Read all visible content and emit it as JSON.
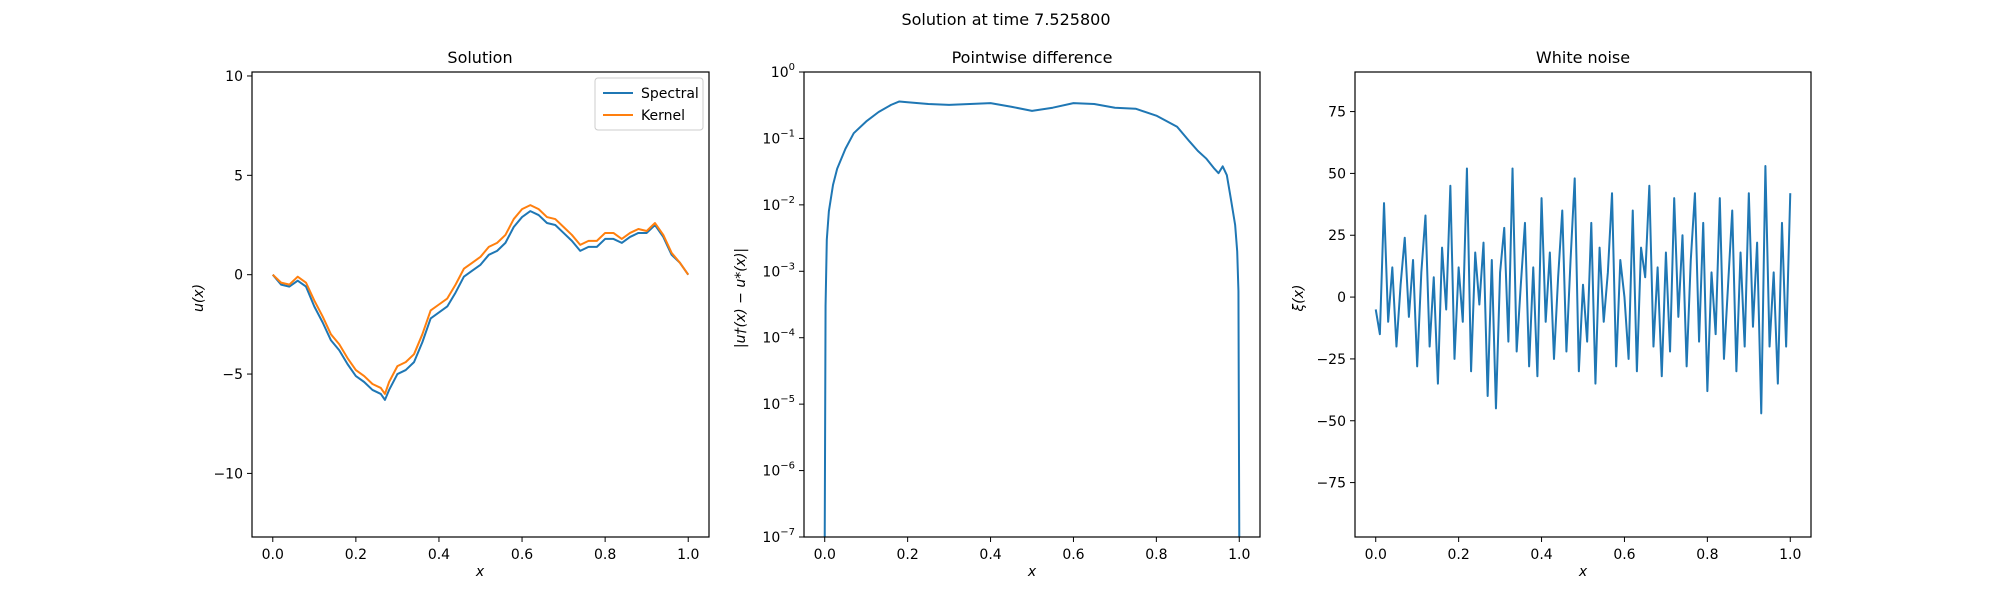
{
  "figure": {
    "suptitle": "Solution at time 7.525800"
  },
  "colors": {
    "series_blue": "#1f77b4",
    "series_orange": "#ff7f0e",
    "axes": "#000000",
    "background": "#ffffff"
  },
  "chart_data": [
    {
      "type": "line",
      "title": "Solution",
      "xlabel": "x",
      "ylabel": "u(x)",
      "xlim": [
        -0.05,
        1.05
      ],
      "ylim": [
        -13.2,
        10.2
      ],
      "xticks": [
        0.0,
        0.2,
        0.4,
        0.6,
        0.8,
        1.0
      ],
      "xtick_labels": [
        "0.0",
        "0.2",
        "0.4",
        "0.6",
        "0.8",
        "1.0"
      ],
      "yticks": [
        -10,
        -5,
        0,
        5,
        10
      ],
      "ytick_labels": [
        "−10",
        "−5",
        "0",
        "5",
        "10"
      ],
      "grid": false,
      "legend": "top-right",
      "series": [
        {
          "name": "Spectral",
          "color": "#1f77b4",
          "x": [
            0.0,
            0.02,
            0.04,
            0.06,
            0.08,
            0.1,
            0.12,
            0.14,
            0.16,
            0.18,
            0.2,
            0.22,
            0.24,
            0.26,
            0.27,
            0.28,
            0.3,
            0.32,
            0.34,
            0.36,
            0.38,
            0.4,
            0.42,
            0.44,
            0.46,
            0.48,
            0.5,
            0.52,
            0.54,
            0.56,
            0.58,
            0.6,
            0.62,
            0.64,
            0.66,
            0.68,
            0.7,
            0.72,
            0.74,
            0.76,
            0.78,
            0.8,
            0.82,
            0.84,
            0.86,
            0.88,
            0.9,
            0.92,
            0.94,
            0.96,
            0.98,
            1.0
          ],
          "y": [
            0.0,
            -0.5,
            -0.6,
            -0.3,
            -0.6,
            -1.6,
            -2.4,
            -3.3,
            -3.8,
            -4.5,
            -5.1,
            -5.4,
            -5.8,
            -6.0,
            -6.3,
            -5.8,
            -5.0,
            -4.8,
            -4.4,
            -3.4,
            -2.2,
            -1.9,
            -1.6,
            -0.9,
            -0.1,
            0.2,
            0.5,
            1.0,
            1.2,
            1.6,
            2.4,
            2.9,
            3.2,
            3.0,
            2.6,
            2.5,
            2.1,
            1.7,
            1.2,
            1.4,
            1.4,
            1.8,
            1.8,
            1.6,
            1.9,
            2.1,
            2.1,
            2.5,
            1.9,
            1.0,
            0.6,
            0.0
          ]
        },
        {
          "name": "Kernel",
          "color": "#ff7f0e",
          "x": [
            0.0,
            0.02,
            0.04,
            0.06,
            0.08,
            0.1,
            0.12,
            0.14,
            0.16,
            0.18,
            0.2,
            0.22,
            0.24,
            0.26,
            0.27,
            0.28,
            0.3,
            0.32,
            0.34,
            0.36,
            0.38,
            0.4,
            0.42,
            0.44,
            0.46,
            0.48,
            0.5,
            0.52,
            0.54,
            0.56,
            0.58,
            0.6,
            0.62,
            0.64,
            0.66,
            0.68,
            0.7,
            0.72,
            0.74,
            0.76,
            0.78,
            0.8,
            0.82,
            0.84,
            0.86,
            0.88,
            0.9,
            0.92,
            0.94,
            0.96,
            0.98,
            1.0
          ],
          "y": [
            0.0,
            -0.4,
            -0.5,
            -0.1,
            -0.4,
            -1.3,
            -2.1,
            -3.0,
            -3.5,
            -4.2,
            -4.8,
            -5.1,
            -5.5,
            -5.7,
            -6.0,
            -5.4,
            -4.6,
            -4.4,
            -4.0,
            -3.0,
            -1.8,
            -1.5,
            -1.2,
            -0.5,
            0.3,
            0.6,
            0.9,
            1.4,
            1.6,
            2.0,
            2.8,
            3.3,
            3.5,
            3.3,
            2.9,
            2.8,
            2.4,
            2.0,
            1.5,
            1.7,
            1.7,
            2.1,
            2.1,
            1.8,
            2.1,
            2.3,
            2.2,
            2.6,
            2.0,
            1.1,
            0.6,
            0.0
          ]
        }
      ]
    },
    {
      "type": "line",
      "title": "Pointwise difference",
      "xlabel": "x",
      "ylabel": "|u†(x) − u*(x)|",
      "yscale": "log",
      "xlim": [
        -0.05,
        1.05
      ],
      "ylim": [
        1e-07,
        1
      ],
      "xticks": [
        0.0,
        0.2,
        0.4,
        0.6,
        0.8,
        1.0
      ],
      "xtick_labels": [
        "0.0",
        "0.2",
        "0.4",
        "0.6",
        "0.8",
        "1.0"
      ],
      "yticks": [
        1e-07,
        1e-06,
        1e-05,
        0.0001,
        0.001,
        0.01,
        0.1,
        1
      ],
      "ytick_base": [
        "10",
        "10",
        "10",
        "10",
        "10",
        "10",
        "10",
        "10"
      ],
      "ytick_exp": [
        "−7",
        "−6",
        "−5",
        "−4",
        "−3",
        "−2",
        "−1",
        "0"
      ],
      "grid": false,
      "series": [
        {
          "color": "#1f77b4",
          "x": [
            0.0,
            0.002,
            0.005,
            0.01,
            0.02,
            0.03,
            0.05,
            0.07,
            0.1,
            0.13,
            0.16,
            0.18,
            0.2,
            0.25,
            0.3,
            0.35,
            0.4,
            0.45,
            0.5,
            0.55,
            0.6,
            0.65,
            0.7,
            0.75,
            0.8,
            0.85,
            0.88,
            0.9,
            0.92,
            0.94,
            0.95,
            0.96,
            0.97,
            0.98,
            0.99,
            0.995,
            0.998,
            1.0
          ],
          "y": [
            1e-07,
            0.0003,
            0.003,
            0.008,
            0.02,
            0.035,
            0.07,
            0.12,
            0.18,
            0.25,
            0.32,
            0.36,
            0.35,
            0.33,
            0.32,
            0.33,
            0.34,
            0.3,
            0.26,
            0.29,
            0.34,
            0.33,
            0.29,
            0.28,
            0.22,
            0.15,
            0.09,
            0.065,
            0.05,
            0.035,
            0.03,
            0.038,
            0.028,
            0.012,
            0.005,
            0.002,
            0.0005,
            1e-07
          ]
        }
      ]
    },
    {
      "type": "line",
      "title": "White noise",
      "xlabel": "x",
      "ylabel": "ξ(x)",
      "xlim": [
        -0.05,
        1.05
      ],
      "ylim": [
        -97,
        91
      ],
      "xticks": [
        0.0,
        0.2,
        0.4,
        0.6,
        0.8,
        1.0
      ],
      "xtick_labels": [
        "0.0",
        "0.2",
        "0.4",
        "0.6",
        "0.8",
        "1.0"
      ],
      "yticks": [
        -75,
        -50,
        -25,
        0,
        25,
        50,
        75
      ],
      "ytick_labels": [
        "−75",
        "−50",
        "−25",
        "0",
        "25",
        "50",
        "75"
      ],
      "grid": false,
      "series": [
        {
          "color": "#1f77b4",
          "x": [
            0.0,
            0.01,
            0.02,
            0.03,
            0.04,
            0.05,
            0.06,
            0.07,
            0.08,
            0.09,
            0.1,
            0.11,
            0.12,
            0.13,
            0.14,
            0.15,
            0.16,
            0.17,
            0.18,
            0.19,
            0.2,
            0.21,
            0.22,
            0.23,
            0.24,
            0.25,
            0.26,
            0.27,
            0.28,
            0.29,
            0.3,
            0.31,
            0.32,
            0.33,
            0.34,
            0.35,
            0.36,
            0.37,
            0.38,
            0.39,
            0.4,
            0.41,
            0.42,
            0.43,
            0.44,
            0.45,
            0.46,
            0.47,
            0.48,
            0.49,
            0.5,
            0.51,
            0.52,
            0.53,
            0.54,
            0.55,
            0.56,
            0.57,
            0.58,
            0.59,
            0.6,
            0.61,
            0.62,
            0.63,
            0.64,
            0.65,
            0.66,
            0.67,
            0.68,
            0.69,
            0.7,
            0.71,
            0.72,
            0.73,
            0.74,
            0.75,
            0.76,
            0.77,
            0.78,
            0.79,
            0.8,
            0.81,
            0.82,
            0.83,
            0.84,
            0.85,
            0.86,
            0.87,
            0.88,
            0.89,
            0.9,
            0.91,
            0.92,
            0.93,
            0.94,
            0.95,
            0.96,
            0.97,
            0.98,
            0.99,
            1.0
          ],
          "y": [
            -5,
            -15,
            38,
            -10,
            12,
            -20,
            5,
            24,
            -8,
            15,
            -28,
            10,
            33,
            -20,
            8,
            -35,
            20,
            -5,
            45,
            -25,
            12,
            -10,
            52,
            -30,
            18,
            -3,
            22,
            -40,
            15,
            -45,
            10,
            28,
            -18,
            52,
            -22,
            5,
            30,
            -28,
            12,
            -32,
            40,
            -10,
            18,
            -25,
            8,
            35,
            -22,
            15,
            48,
            -30,
            5,
            -18,
            30,
            -35,
            20,
            -10,
            10,
            42,
            -28,
            15,
            0,
            -25,
            35,
            -30,
            20,
            8,
            45,
            -20,
            12,
            -32,
            18,
            -22,
            40,
            -8,
            25,
            -28,
            15,
            42,
            -18,
            30,
            -38,
            10,
            -15,
            40,
            -25,
            5,
            35,
            -30,
            18,
            -20,
            42,
            -12,
            22,
            -47,
            53,
            -20,
            10,
            -35,
            30,
            -20,
            42
          ]
        }
      ]
    }
  ]
}
